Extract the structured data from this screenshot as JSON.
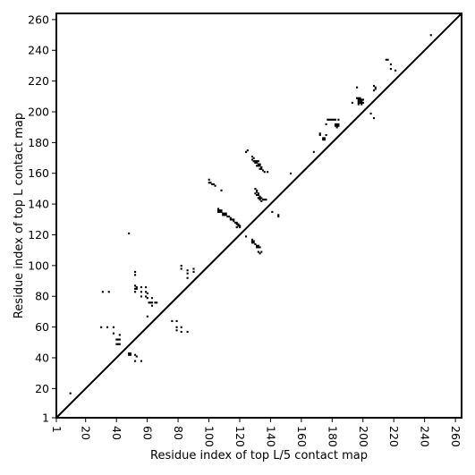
{
  "chart_data": {
    "type": "scatter",
    "xlabel": "Residue index of top L/5 contact map",
    "ylabel": "Residue index of top L contact map",
    "xlim": [
      1,
      264
    ],
    "ylim": [
      1,
      264
    ],
    "xticks": [
      "1",
      "20",
      "40",
      "60",
      "80",
      "100",
      "120",
      "140",
      "160",
      "180",
      "200",
      "220",
      "240",
      "260"
    ],
    "yticks": [
      "1",
      "20",
      "40",
      "60",
      "80",
      "100",
      "120",
      "140",
      "160",
      "180",
      "200",
      "220",
      "240",
      "260"
    ],
    "grid": false,
    "diagonal": true,
    "point_color": "#000000",
    "points": [
      [
        10,
        17
      ],
      [
        48,
        121
      ],
      [
        35,
        83
      ],
      [
        31,
        83
      ],
      [
        30,
        60
      ],
      [
        34,
        60
      ],
      [
        38,
        60
      ],
      [
        38,
        56
      ],
      [
        42,
        55
      ],
      [
        40,
        52
      ],
      [
        41,
        52
      ],
      [
        42,
        52
      ],
      [
        40,
        49
      ],
      [
        41,
        49
      ],
      [
        42,
        49
      ],
      [
        48,
        43
      ],
      [
        49,
        43
      ],
      [
        48,
        42
      ],
      [
        49,
        42
      ],
      [
        52,
        42
      ],
      [
        53,
        41
      ],
      [
        52,
        38
      ],
      [
        56,
        38
      ],
      [
        52,
        96
      ],
      [
        52,
        94
      ],
      [
        52,
        87
      ],
      [
        53,
        86
      ],
      [
        52,
        85
      ],
      [
        53,
        85
      ],
      [
        52,
        83
      ],
      [
        56,
        86
      ],
      [
        56,
        83
      ],
      [
        56,
        80
      ],
      [
        59,
        86
      ],
      [
        59,
        83
      ],
      [
        59,
        80
      ],
      [
        60,
        82
      ],
      [
        60,
        79
      ],
      [
        61,
        76
      ],
      [
        62,
        76
      ],
      [
        63,
        79
      ],
      [
        63,
        76
      ],
      [
        63,
        74
      ],
      [
        65,
        76
      ],
      [
        66,
        76
      ],
      [
        60,
        67
      ],
      [
        76,
        64
      ],
      [
        79,
        64
      ],
      [
        79,
        60
      ],
      [
        79,
        58
      ],
      [
        82,
        60
      ],
      [
        82,
        57
      ],
      [
        86,
        57
      ],
      [
        82,
        100
      ],
      [
        82,
        98
      ],
      [
        86,
        97
      ],
      [
        86,
        95
      ],
      [
        86,
        92
      ],
      [
        90,
        96
      ],
      [
        90,
        98
      ],
      [
        100,
        156
      ],
      [
        100,
        154
      ],
      [
        101,
        154
      ],
      [
        102,
        153
      ],
      [
        103,
        153
      ],
      [
        104,
        152
      ],
      [
        108,
        149
      ],
      [
        106,
        137
      ],
      [
        106,
        136
      ],
      [
        107,
        136
      ],
      [
        108,
        136
      ],
      [
        106,
        135
      ],
      [
        107,
        135
      ],
      [
        108,
        135
      ],
      [
        109,
        134
      ],
      [
        110,
        134
      ],
      [
        111,
        134
      ],
      [
        109,
        133
      ],
      [
        110,
        133
      ],
      [
        111,
        133
      ],
      [
        112,
        132
      ],
      [
        113,
        132
      ],
      [
        114,
        131
      ],
      [
        114,
        130
      ],
      [
        115,
        130
      ],
      [
        116,
        130
      ],
      [
        116,
        129
      ],
      [
        117,
        128
      ],
      [
        118,
        128
      ],
      [
        118,
        127
      ],
      [
        119,
        127
      ],
      [
        119,
        126
      ],
      [
        120,
        126
      ],
      [
        120,
        125
      ],
      [
        118,
        125
      ],
      [
        124,
        119
      ],
      [
        125,
        175
      ],
      [
        124,
        174
      ],
      [
        128,
        117
      ],
      [
        128,
        116
      ],
      [
        129,
        116
      ],
      [
        128,
        115
      ],
      [
        129,
        115
      ],
      [
        130,
        114
      ],
      [
        131,
        113
      ],
      [
        132,
        113
      ],
      [
        131,
        112
      ],
      [
        132,
        112
      ],
      [
        133,
        112
      ],
      [
        132,
        109
      ],
      [
        134,
        109
      ],
      [
        133,
        108
      ],
      [
        128,
        171
      ],
      [
        129,
        170
      ],
      [
        128,
        169
      ],
      [
        129,
        168
      ],
      [
        130,
        168
      ],
      [
        131,
        168
      ],
      [
        132,
        168
      ],
      [
        130,
        167
      ],
      [
        131,
        167
      ],
      [
        132,
        166
      ],
      [
        133,
        166
      ],
      [
        131,
        165
      ],
      [
        132,
        165
      ],
      [
        133,
        165
      ],
      [
        134,
        164
      ],
      [
        133,
        163
      ],
      [
        134,
        163
      ],
      [
        135,
        162
      ],
      [
        136,
        161
      ],
      [
        138,
        161
      ],
      [
        130,
        150
      ],
      [
        131,
        149
      ],
      [
        131,
        148
      ],
      [
        130,
        147
      ],
      [
        132,
        147
      ],
      [
        131,
        146
      ],
      [
        132,
        146
      ],
      [
        133,
        145
      ],
      [
        132,
        144
      ],
      [
        133,
        144
      ],
      [
        134,
        144
      ],
      [
        133,
        143
      ],
      [
        134,
        142
      ],
      [
        135,
        143
      ],
      [
        136,
        143
      ],
      [
        137,
        143
      ],
      [
        141,
        135
      ],
      [
        145,
        133
      ],
      [
        145,
        132
      ],
      [
        153,
        160
      ],
      [
        168,
        174
      ],
      [
        172,
        185
      ],
      [
        172,
        186
      ],
      [
        174,
        183
      ],
      [
        175,
        183
      ],
      [
        174,
        182
      ],
      [
        175,
        182
      ],
      [
        176,
        192
      ],
      [
        177,
        195
      ],
      [
        178,
        195
      ],
      [
        179,
        195
      ],
      [
        180,
        195
      ],
      [
        181,
        195
      ],
      [
        182,
        195
      ],
      [
        184,
        195
      ],
      [
        176,
        185
      ],
      [
        182,
        192
      ],
      [
        183,
        192
      ],
      [
        184,
        192
      ],
      [
        182,
        191
      ],
      [
        183,
        191
      ],
      [
        184,
        191
      ],
      [
        183,
        190
      ],
      [
        193,
        206
      ],
      [
        196,
        216
      ],
      [
        196,
        209
      ],
      [
        197,
        209
      ],
      [
        198,
        209
      ],
      [
        197,
        208
      ],
      [
        198,
        208
      ],
      [
        199,
        208
      ],
      [
        200,
        208
      ],
      [
        197,
        207
      ],
      [
        198,
        207
      ],
      [
        199,
        207
      ],
      [
        197,
        206
      ],
      [
        198,
        206
      ],
      [
        199,
        206
      ],
      [
        200,
        206
      ],
      [
        197,
        205
      ],
      [
        199,
        205
      ],
      [
        205,
        199
      ],
      [
        207,
        196
      ],
      [
        207,
        217
      ],
      [
        208,
        216
      ],
      [
        208,
        215
      ],
      [
        207,
        214
      ],
      [
        215,
        234
      ],
      [
        216,
        234
      ],
      [
        218,
        231
      ],
      [
        218,
        228
      ],
      [
        221,
        227
      ],
      [
        244,
        250
      ]
    ]
  }
}
